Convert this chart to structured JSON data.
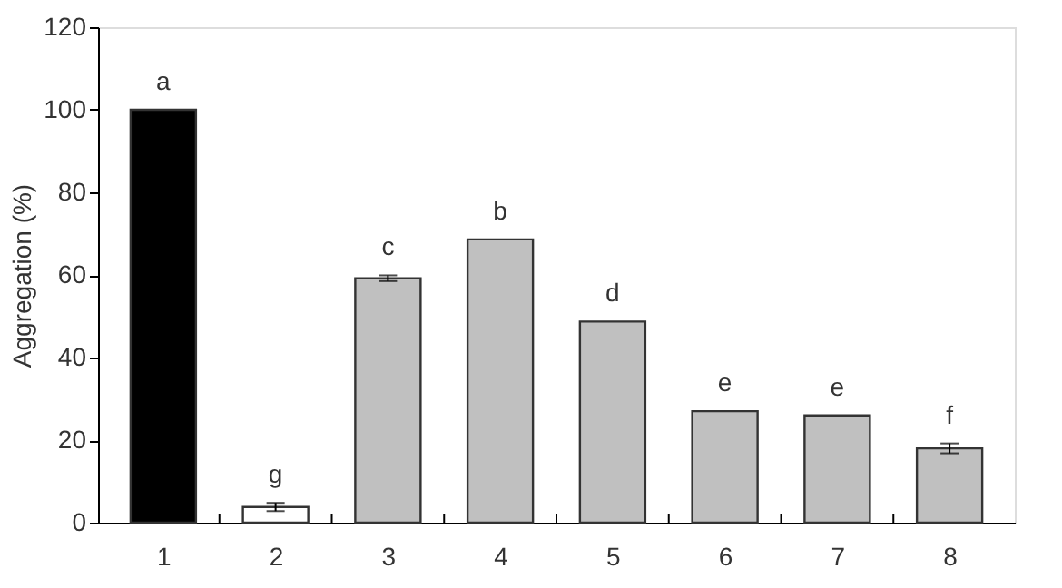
{
  "chart_data": {
    "type": "bar",
    "ylabel": "Aggregation (%)",
    "categories": [
      "1",
      "2",
      "3",
      "4",
      "5",
      "6",
      "7",
      "8"
    ],
    "values": [
      100,
      3.8,
      59.2,
      68.6,
      48.7,
      27,
      26,
      18
    ],
    "colors": [
      "#000000",
      "#ffffff",
      "#c0c0c0",
      "#c0c0c0",
      "#c0c0c0",
      "#c0c0c0",
      "#c0c0c0",
      "#c0c0c0"
    ],
    "errors": [
      null,
      1,
      0.7,
      null,
      null,
      null,
      null,
      1.2
    ],
    "ylim": [
      0,
      120
    ],
    "yticks": [
      0,
      20,
      40,
      60,
      80,
      100,
      120
    ],
    "grid": false,
    "annotations": [
      {
        "text": "a",
        "x": "1",
        "y": 100
      },
      {
        "text": "g",
        "x": "2",
        "y": 4.8
      },
      {
        "text": "c",
        "x": "3",
        "y": 59.9
      },
      {
        "text": "b",
        "x": "4",
        "y": 68.6
      },
      {
        "text": "d",
        "x": "5",
        "y": 48.7
      },
      {
        "text": "e",
        "x": "6",
        "y": 27
      },
      {
        "text": "e",
        "x": "7",
        "y": 26
      },
      {
        "text": "f",
        "x": "8",
        "y": 19.2
      }
    ]
  }
}
